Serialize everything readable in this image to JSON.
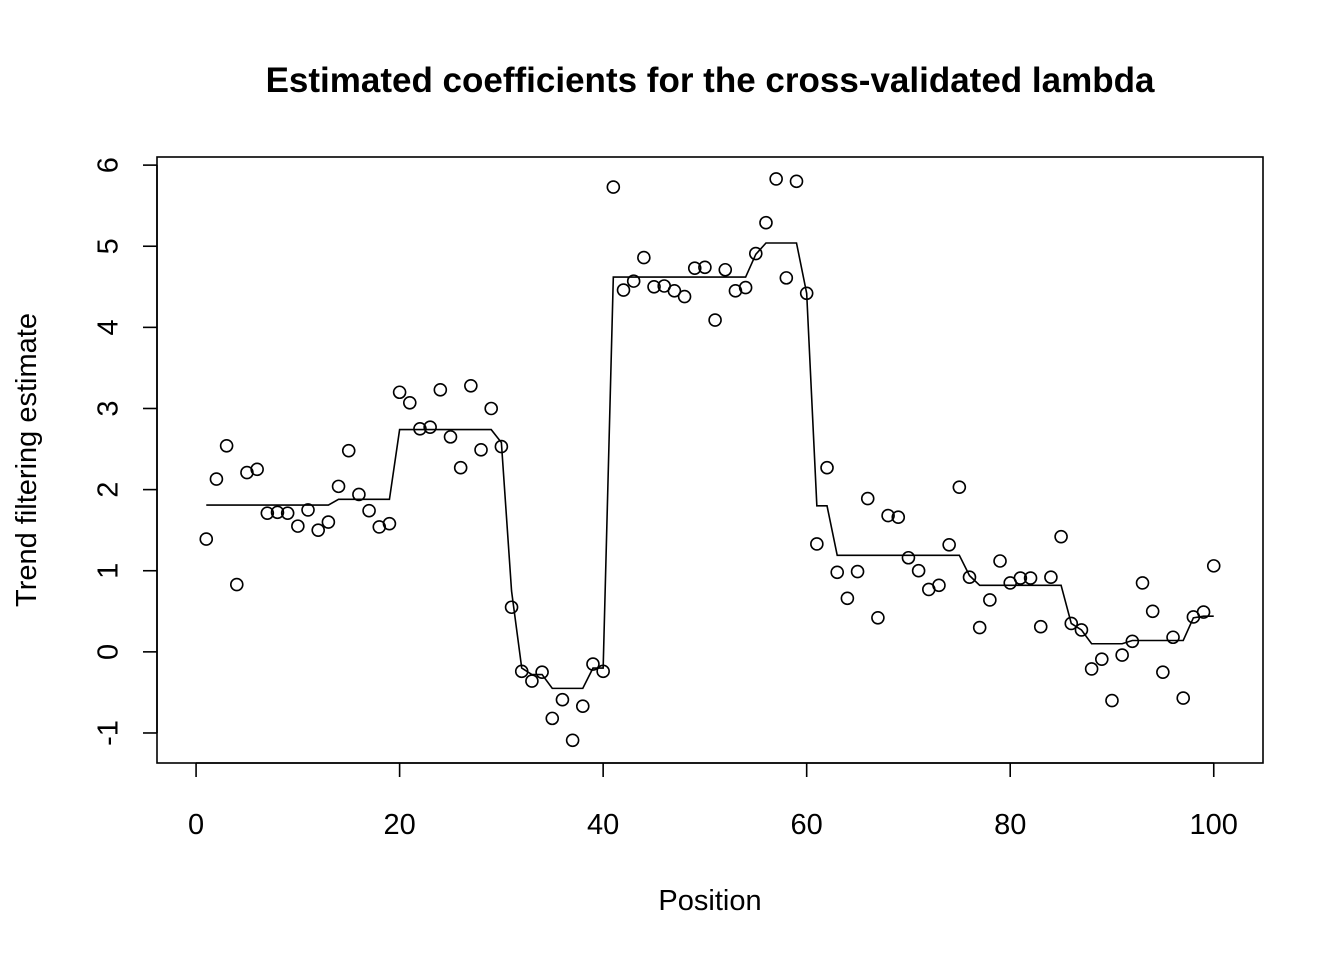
{
  "chart_data": {
    "type": "scatter",
    "title": "Estimated coefficients for the cross-validated lambda",
    "xlabel": "Position",
    "ylabel": "Trend filtering estimate",
    "xlim": [
      -3.84,
      104.84
    ],
    "ylim": [
      -1.37,
      6.1
    ],
    "x_ticks": [
      0,
      20,
      40,
      60,
      80,
      100
    ],
    "x_tick_labels": [
      "0",
      "20",
      "40",
      "60",
      "80",
      "100"
    ],
    "y_ticks": [
      -1,
      0,
      1,
      2,
      3,
      4,
      5,
      6
    ],
    "y_tick_labels": [
      "-1",
      "0",
      "1",
      "2",
      "3",
      "4",
      "5",
      "6"
    ],
    "grid": false,
    "legend": "none",
    "series": [
      {
        "kind": "points",
        "marker": "open-circle",
        "x": [
          1,
          2,
          3,
          4,
          5,
          6,
          7,
          8,
          9,
          10,
          11,
          12,
          13,
          14,
          15,
          16,
          17,
          18,
          19,
          20,
          21,
          22,
          23,
          24,
          25,
          26,
          27,
          28,
          29,
          30,
          31,
          32,
          33,
          34,
          35,
          36,
          37,
          38,
          39,
          40,
          41,
          42,
          43,
          44,
          45,
          46,
          47,
          48,
          49,
          50,
          51,
          52,
          53,
          54,
          55,
          56,
          57,
          58,
          59,
          60,
          61,
          62,
          63,
          64,
          65,
          66,
          67,
          68,
          69,
          70,
          71,
          72,
          73,
          74,
          75,
          76,
          77,
          78,
          79,
          80,
          81,
          82,
          83,
          84,
          85,
          86,
          87,
          88,
          89,
          90,
          91,
          92,
          93,
          94,
          95,
          96,
          97,
          98,
          99,
          100
        ],
        "y": [
          1.39,
          2.13,
          2.54,
          0.83,
          2.21,
          2.25,
          1.71,
          1.72,
          1.71,
          1.55,
          1.75,
          1.5,
          1.6,
          2.04,
          2.48,
          1.94,
          1.74,
          1.54,
          1.58,
          3.2,
          3.07,
          2.75,
          2.77,
          3.23,
          2.65,
          2.27,
          3.28,
          2.49,
          3.0,
          2.53,
          0.55,
          -0.24,
          -0.36,
          -0.25,
          -0.82,
          -0.59,
          -1.09,
          -0.67,
          -0.15,
          -0.24,
          5.73,
          4.46,
          4.57,
          4.86,
          4.5,
          4.51,
          4.45,
          4.38,
          4.73,
          4.74,
          4.09,
          4.71,
          4.45,
          4.49,
          4.91,
          5.29,
          5.83,
          4.61,
          5.8,
          4.42,
          1.33,
          2.27,
          0.98,
          0.66,
          0.99,
          1.89,
          0.42,
          1.68,
          1.66,
          1.16,
          1.0,
          0.77,
          0.82,
          1.32,
          2.03,
          0.92,
          0.3,
          0.64,
          1.12,
          0.85,
          0.91,
          0.91,
          0.31,
          0.92,
          1.42,
          0.35,
          0.27,
          -0.21,
          -0.09,
          -0.6,
          -0.04,
          0.13,
          0.85,
          0.5,
          -0.25,
          0.18,
          -0.57,
          0.43,
          0.49,
          1.06
        ]
      },
      {
        "kind": "line",
        "x": [
          1,
          2,
          3,
          4,
          5,
          6,
          7,
          8,
          9,
          10,
          11,
          12,
          13,
          14,
          15,
          16,
          17,
          18,
          19,
          20,
          21,
          22,
          23,
          24,
          25,
          26,
          27,
          28,
          29,
          30,
          31,
          32,
          33,
          34,
          35,
          36,
          37,
          38,
          39,
          40,
          41,
          42,
          43,
          44,
          45,
          46,
          47,
          48,
          49,
          50,
          51,
          52,
          53,
          54,
          55,
          56,
          57,
          58,
          59,
          60,
          61,
          62,
          63,
          64,
          65,
          66,
          67,
          68,
          69,
          70,
          71,
          72,
          73,
          74,
          75,
          76,
          77,
          78,
          79,
          80,
          81,
          82,
          83,
          84,
          85,
          86,
          87,
          88,
          89,
          90,
          91,
          92,
          93,
          94,
          95,
          96,
          97,
          98,
          99,
          100
        ],
        "y": [
          1.81,
          1.81,
          1.81,
          1.81,
          1.81,
          1.81,
          1.81,
          1.81,
          1.81,
          1.81,
          1.81,
          1.81,
          1.81,
          1.88,
          1.88,
          1.88,
          1.88,
          1.88,
          1.88,
          2.74,
          2.74,
          2.74,
          2.74,
          2.74,
          2.74,
          2.74,
          2.74,
          2.74,
          2.74,
          2.58,
          0.75,
          -0.2,
          -0.28,
          -0.28,
          -0.45,
          -0.45,
          -0.45,
          -0.45,
          -0.2,
          -0.2,
          4.62,
          4.62,
          4.62,
          4.62,
          4.62,
          4.62,
          4.62,
          4.62,
          4.62,
          4.62,
          4.62,
          4.62,
          4.62,
          4.62,
          4.9,
          5.04,
          5.04,
          5.04,
          5.04,
          4.42,
          1.8,
          1.8,
          1.19,
          1.19,
          1.19,
          1.19,
          1.19,
          1.19,
          1.19,
          1.19,
          1.19,
          1.19,
          1.19,
          1.19,
          1.19,
          0.94,
          0.82,
          0.82,
          0.82,
          0.82,
          0.82,
          0.82,
          0.82,
          0.82,
          0.82,
          0.35,
          0.27,
          0.1,
          0.1,
          0.1,
          0.1,
          0.14,
          0.14,
          0.14,
          0.14,
          0.14,
          0.14,
          0.42,
          0.44,
          0.44
        ]
      }
    ]
  }
}
